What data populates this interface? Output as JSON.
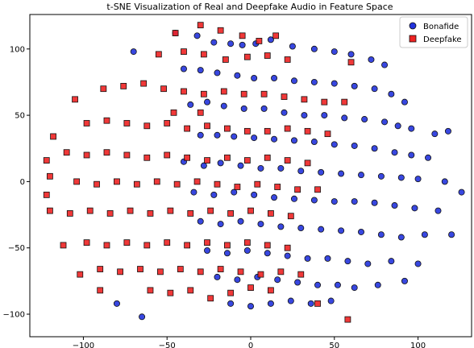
{
  "chart_data": {
    "type": "scatter",
    "title": "t-SNE Visualization of Real and Deepfake Audio in Feature Space",
    "xlabel": "",
    "ylabel": "",
    "xlim": [
      -132,
      132
    ],
    "ylim": [
      -117,
      126
    ],
    "xticks": [
      -100,
      -50,
      0,
      50,
      100
    ],
    "yticks": [
      -100,
      -50,
      0,
      50,
      100
    ],
    "tick_labels_x": [
      "−100",
      "−50",
      "0",
      "50",
      "100"
    ],
    "tick_labels_y": [
      "−100",
      "−50",
      "0",
      "50",
      "100"
    ],
    "grid": false,
    "legend_position": "top-right",
    "series": [
      {
        "name": "Bonafide",
        "marker": "circle",
        "color": "#2233dd",
        "edge_color": "#111111",
        "points": [
          [
            -45,
            112
          ],
          [
            -32,
            110
          ],
          [
            -22,
            105
          ],
          [
            -12,
            104
          ],
          [
            -5,
            103
          ],
          [
            3,
            104
          ],
          [
            12,
            107
          ],
          [
            25,
            102
          ],
          [
            38,
            100
          ],
          [
            50,
            98
          ],
          [
            60,
            96
          ],
          [
            72,
            92
          ],
          [
            80,
            88
          ],
          [
            -40,
            85
          ],
          [
            -30,
            84
          ],
          [
            -20,
            82
          ],
          [
            -8,
            80
          ],
          [
            2,
            78
          ],
          [
            14,
            78
          ],
          [
            26,
            76
          ],
          [
            38,
            75
          ],
          [
            50,
            74
          ],
          [
            62,
            72
          ],
          [
            74,
            70
          ],
          [
            84,
            66
          ],
          [
            92,
            60
          ],
          [
            -36,
            58
          ],
          [
            -26,
            60
          ],
          [
            -16,
            57
          ],
          [
            -4,
            55
          ],
          [
            8,
            55
          ],
          [
            20,
            52
          ],
          [
            32,
            50
          ],
          [
            44,
            50
          ],
          [
            56,
            48
          ],
          [
            68,
            47
          ],
          [
            80,
            45
          ],
          [
            88,
            42
          ],
          [
            96,
            40
          ],
          [
            110,
            36
          ],
          [
            -30,
            35
          ],
          [
            -20,
            35
          ],
          [
            -10,
            34
          ],
          [
            2,
            33
          ],
          [
            14,
            32
          ],
          [
            26,
            31
          ],
          [
            38,
            30
          ],
          [
            50,
            28
          ],
          [
            62,
            27
          ],
          [
            74,
            25
          ],
          [
            86,
            22
          ],
          [
            96,
            20
          ],
          [
            106,
            18
          ],
          [
            -40,
            15
          ],
          [
            -28,
            12
          ],
          [
            -18,
            14
          ],
          [
            -6,
            12
          ],
          [
            6,
            10
          ],
          [
            18,
            10
          ],
          [
            30,
            8
          ],
          [
            42,
            7
          ],
          [
            54,
            6
          ],
          [
            66,
            5
          ],
          [
            78,
            4
          ],
          [
            90,
            3
          ],
          [
            100,
            2
          ],
          [
            116,
            0
          ],
          [
            -34,
            -8
          ],
          [
            -22,
            -10
          ],
          [
            -10,
            -8
          ],
          [
            2,
            -10
          ],
          [
            14,
            -12
          ],
          [
            26,
            -13
          ],
          [
            38,
            -14
          ],
          [
            50,
            -15
          ],
          [
            62,
            -15
          ],
          [
            74,
            -16
          ],
          [
            86,
            -18
          ],
          [
            98,
            -20
          ],
          [
            112,
            -22
          ],
          [
            -30,
            -30
          ],
          [
            -18,
            -32
          ],
          [
            -6,
            -30
          ],
          [
            6,
            -32
          ],
          [
            18,
            -34
          ],
          [
            30,
            -35
          ],
          [
            42,
            -36
          ],
          [
            54,
            -37
          ],
          [
            66,
            -38
          ],
          [
            78,
            -40
          ],
          [
            90,
            -42
          ],
          [
            104,
            -40
          ],
          [
            120,
            -40
          ],
          [
            -26,
            -52
          ],
          [
            -14,
            -54
          ],
          [
            -2,
            -52
          ],
          [
            10,
            -54
          ],
          [
            22,
            -56
          ],
          [
            34,
            -58
          ],
          [
            46,
            -58
          ],
          [
            58,
            -60
          ],
          [
            70,
            -62
          ],
          [
            84,
            -60
          ],
          [
            100,
            -62
          ],
          [
            -20,
            -72
          ],
          [
            -8,
            -74
          ],
          [
            4,
            -72
          ],
          [
            16,
            -74
          ],
          [
            28,
            -76
          ],
          [
            40,
            -78
          ],
          [
            52,
            -78
          ],
          [
            62,
            -80
          ],
          [
            76,
            -78
          ],
          [
            -12,
            -92
          ],
          [
            0,
            -94
          ],
          [
            12,
            -92
          ],
          [
            24,
            -90
          ],
          [
            36,
            -92
          ],
          [
            48,
            -90
          ],
          [
            -70,
            98
          ],
          [
            -80,
            -92
          ],
          [
            -65,
            -102
          ],
          [
            92,
            -75
          ],
          [
            118,
            38
          ],
          [
            126,
            -8
          ]
        ]
      },
      {
        "name": "Deepfake",
        "marker": "square",
        "color": "#ee2222",
        "edge_color": "#111111",
        "points": [
          [
            -45,
            112
          ],
          [
            -30,
            118
          ],
          [
            -18,
            114
          ],
          [
            -5,
            110
          ],
          [
            5,
            106
          ],
          [
            15,
            110
          ],
          [
            -55,
            96
          ],
          [
            -40,
            98
          ],
          [
            -28,
            96
          ],
          [
            -15,
            92
          ],
          [
            -2,
            94
          ],
          [
            10,
            95
          ],
          [
            22,
            92
          ],
          [
            -88,
            70
          ],
          [
            -76,
            72
          ],
          [
            -64,
            74
          ],
          [
            -52,
            70
          ],
          [
            -40,
            68
          ],
          [
            -28,
            66
          ],
          [
            -16,
            68
          ],
          [
            -4,
            66
          ],
          [
            8,
            66
          ],
          [
            20,
            64
          ],
          [
            32,
            62
          ],
          [
            44,
            60
          ],
          [
            56,
            60
          ],
          [
            -98,
            44
          ],
          [
            -86,
            46
          ],
          [
            -74,
            44
          ],
          [
            -62,
            42
          ],
          [
            -50,
            44
          ],
          [
            -38,
            40
          ],
          [
            -26,
            42
          ],
          [
            -14,
            40
          ],
          [
            -2,
            38
          ],
          [
            10,
            38
          ],
          [
            22,
            40
          ],
          [
            34,
            38
          ],
          [
            46,
            36
          ],
          [
            -110,
            22
          ],
          [
            -98,
            20
          ],
          [
            -86,
            22
          ],
          [
            -74,
            20
          ],
          [
            -62,
            18
          ],
          [
            -50,
            20
          ],
          [
            -38,
            18
          ],
          [
            -26,
            16
          ],
          [
            -14,
            18
          ],
          [
            -2,
            16
          ],
          [
            10,
            18
          ],
          [
            22,
            16
          ],
          [
            34,
            14
          ],
          [
            -104,
            0
          ],
          [
            -92,
            -2
          ],
          [
            -80,
            0
          ],
          [
            -68,
            -2
          ],
          [
            -56,
            0
          ],
          [
            -44,
            -2
          ],
          [
            -32,
            0
          ],
          [
            -20,
            -2
          ],
          [
            -8,
            -4
          ],
          [
            4,
            -2
          ],
          [
            16,
            -4
          ],
          [
            28,
            -6
          ],
          [
            40,
            -6
          ],
          [
            -108,
            -24
          ],
          [
            -96,
            -22
          ],
          [
            -84,
            -24
          ],
          [
            -72,
            -22
          ],
          [
            -60,
            -24
          ],
          [
            -48,
            -22
          ],
          [
            -36,
            -24
          ],
          [
            -24,
            -22
          ],
          [
            -12,
            -24
          ],
          [
            0,
            -22
          ],
          [
            12,
            -24
          ],
          [
            24,
            -26
          ],
          [
            -98,
            -46
          ],
          [
            -86,
            -48
          ],
          [
            -74,
            -46
          ],
          [
            -62,
            -48
          ],
          [
            -50,
            -46
          ],
          [
            -38,
            -48
          ],
          [
            -26,
            -46
          ],
          [
            -14,
            -48
          ],
          [
            -2,
            -46
          ],
          [
            10,
            -48
          ],
          [
            22,
            -50
          ],
          [
            -90,
            -66
          ],
          [
            -78,
            -68
          ],
          [
            -66,
            -66
          ],
          [
            -54,
            -68
          ],
          [
            -42,
            -66
          ],
          [
            -30,
            -68
          ],
          [
            -18,
            -66
          ],
          [
            -6,
            -68
          ],
          [
            6,
            -70
          ],
          [
            18,
            -68
          ],
          [
            30,
            -70
          ],
          [
            -60,
            -82
          ],
          [
            -48,
            -84
          ],
          [
            -36,
            -82
          ],
          [
            -24,
            -88
          ],
          [
            -12,
            -84
          ],
          [
            0,
            -80
          ],
          [
            12,
            -82
          ],
          [
            -122,
            16
          ],
          [
            -122,
            -10
          ],
          [
            -120,
            -22
          ],
          [
            -120,
            4
          ],
          [
            -118,
            34
          ],
          [
            -112,
            -48
          ],
          [
            -105,
            62
          ],
          [
            -102,
            -70
          ],
          [
            -90,
            -82
          ],
          [
            40,
            -92
          ],
          [
            58,
            -104
          ],
          [
            60,
            90
          ],
          [
            -46,
            52
          ],
          [
            -30,
            52
          ]
        ]
      }
    ]
  },
  "legend": {
    "items": [
      {
        "label": "Bonafide",
        "color": "#2233dd",
        "marker": "circle"
      },
      {
        "label": "Deepfake",
        "color": "#ee2222",
        "marker": "square"
      }
    ]
  }
}
